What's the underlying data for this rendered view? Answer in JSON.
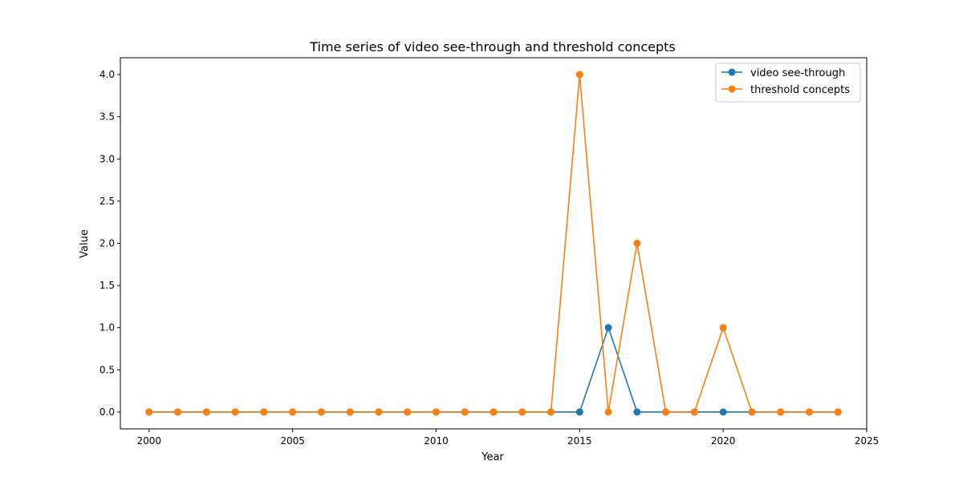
{
  "chart_data": {
    "type": "line",
    "title": "Time series of video see-through and threshold concepts",
    "xlabel": "Year",
    "ylabel": "Value",
    "xlim": [
      1999,
      2025
    ],
    "ylim": [
      -0.2,
      4.2
    ],
    "xticks": [
      2000,
      2005,
      2010,
      2015,
      2020,
      2025
    ],
    "xtick_labels": [
      "2000",
      "2005",
      "2010",
      "2015",
      "2020",
      "2025"
    ],
    "yticks": [
      0,
      0.5,
      1,
      1.5,
      2,
      2.5,
      3,
      3.5,
      4
    ],
    "ytick_labels": [
      "0.0",
      "0.5",
      "1.0",
      "1.5",
      "2.0",
      "2.5",
      "3.0",
      "3.5",
      "4.0"
    ],
    "grid": false,
    "legend_position": "top-right",
    "x": [
      2000,
      2001,
      2002,
      2003,
      2004,
      2005,
      2006,
      2007,
      2008,
      2009,
      2010,
      2011,
      2012,
      2013,
      2014,
      2015,
      2016,
      2017,
      2018,
      2019,
      2020,
      2021,
      2022,
      2023,
      2024
    ],
    "series": [
      {
        "name": "video see-through",
        "color": "#1f77b4",
        "values": [
          0,
          0,
          0,
          0,
          0,
          0,
          0,
          0,
          0,
          0,
          0,
          0,
          0,
          0,
          0,
          0,
          1,
          0,
          0,
          0,
          0,
          0,
          0,
          0,
          0
        ]
      },
      {
        "name": "threshold concepts",
        "color": "#ff7f0e",
        "values": [
          0,
          0,
          0,
          0,
          0,
          0,
          0,
          0,
          0,
          0,
          0,
          0,
          0,
          0,
          0,
          4,
          0,
          2,
          0,
          0,
          1,
          0,
          0,
          0,
          0
        ]
      }
    ]
  }
}
